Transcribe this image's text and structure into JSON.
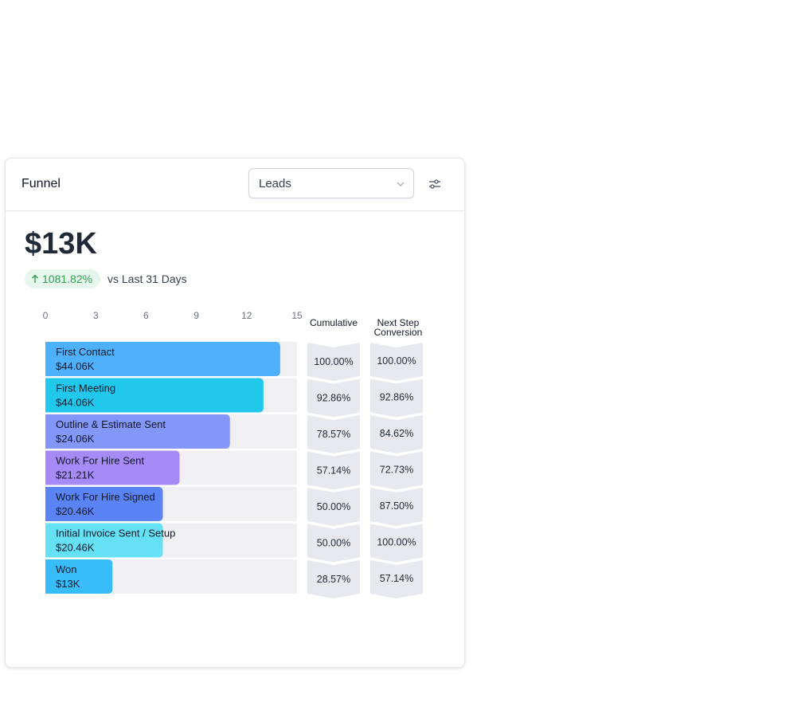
{
  "card": {
    "title": "Funnel",
    "select_value": "Leads",
    "total_value": "$13K",
    "change_percent": "1081.82%",
    "compare_text": "vs Last 31 Days"
  },
  "colors": {
    "badge_bg": "#e7f6ec",
    "badge_text": "#2f9e53",
    "track": "#f0f0f2",
    "chevron": "#e8e9ee"
  },
  "chart_data": {
    "type": "bar",
    "orientation": "horizontal",
    "x_ticks": [
      "0",
      "3",
      "6",
      "9",
      "12",
      "15"
    ],
    "xlim": [
      0,
      15
    ],
    "columns": [
      "Cumulative",
      "Next Step Conversion"
    ],
    "stages": [
      {
        "name": "First Contact",
        "amount": "$44.06K",
        "count": 14,
        "cumulative": "100.00%",
        "next_step": "100.00%",
        "color": "#4fb0fb"
      },
      {
        "name": "First Meeting",
        "amount": "$44.06K",
        "count": 13,
        "cumulative": "92.86%",
        "next_step": "92.86%",
        "color": "#22c8ec"
      },
      {
        "name": "Outline & Estimate Sent",
        "amount": "$24.06K",
        "count": 11,
        "cumulative": "78.57%",
        "next_step": "84.62%",
        "color": "#8297f7"
      },
      {
        "name": "Work For Hire Sent",
        "amount": "$21.21K",
        "count": 8,
        "cumulative": "57.14%",
        "next_step": "72.73%",
        "color": "#a68af6"
      },
      {
        "name": "Work For Hire Signed",
        "amount": "$20.46K",
        "count": 7,
        "cumulative": "50.00%",
        "next_step": "87.50%",
        "color": "#5a84f5"
      },
      {
        "name": "Initial Invoice Sent / Setup",
        "amount": "$20.46K",
        "count": 7,
        "cumulative": "50.00%",
        "next_step": "100.00%",
        "color": "#65e0f5"
      },
      {
        "name": "Won",
        "amount": "$13K",
        "count": 4,
        "cumulative": "28.57%",
        "next_step": "57.14%",
        "color": "#38bdf8"
      }
    ]
  }
}
